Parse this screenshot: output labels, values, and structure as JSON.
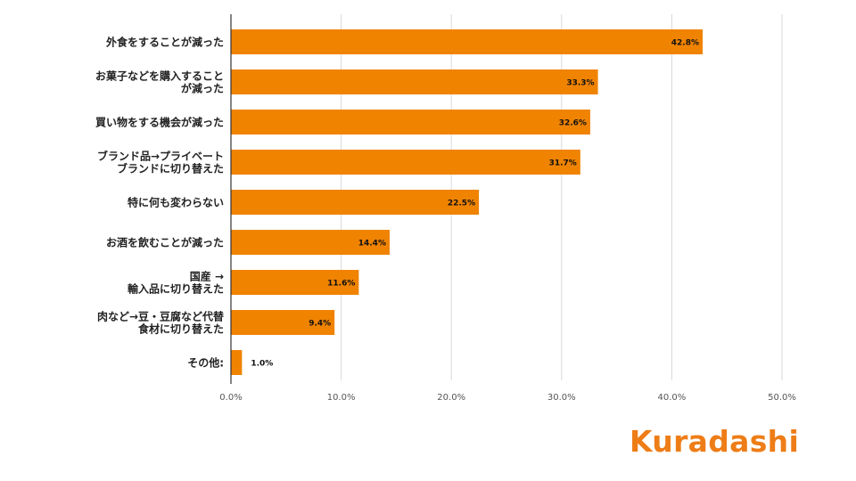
{
  "chart_data": {
    "type": "bar",
    "orientation": "horizontal",
    "categories": [
      [
        "外食をすることが減った"
      ],
      [
        "お菓子などを購入すること",
        "が減った"
      ],
      [
        "買い物をする機会が減った"
      ],
      [
        "ブランド品→プライベート",
        "ブランドに切り替えた"
      ],
      [
        "特に何も変わらない"
      ],
      [
        "お酒を飲むことが減った"
      ],
      [
        "国産 →",
        "輸入品に切り替えた"
      ],
      [
        "肉など→豆・豆腐など代替",
        "食材に切り替えた"
      ],
      [
        "その他:"
      ]
    ],
    "values": [
      42.8,
      33.3,
      32.6,
      31.7,
      22.5,
      14.4,
      11.6,
      9.4,
      1.0
    ],
    "data_labels": [
      "42.8%",
      "33.3%",
      "32.6%",
      "31.7%",
      "22.5%",
      "14.4%",
      "11.6%",
      "9.4%",
      "1.0%"
    ],
    "xlim": [
      0,
      50
    ],
    "x_ticks": [
      0,
      10,
      20,
      30,
      40,
      50
    ],
    "x_tick_labels": [
      "0.0%",
      "10.0%",
      "20.0%",
      "30.0%",
      "40.0%",
      "50.0%"
    ],
    "grid": true,
    "bar_color": "#f08300",
    "grid_color": "#d9d9d9",
    "title": "",
    "xlabel": "",
    "ylabel": ""
  },
  "brand": {
    "logo_text": "Kuradashi",
    "color": "#ee7d17"
  }
}
